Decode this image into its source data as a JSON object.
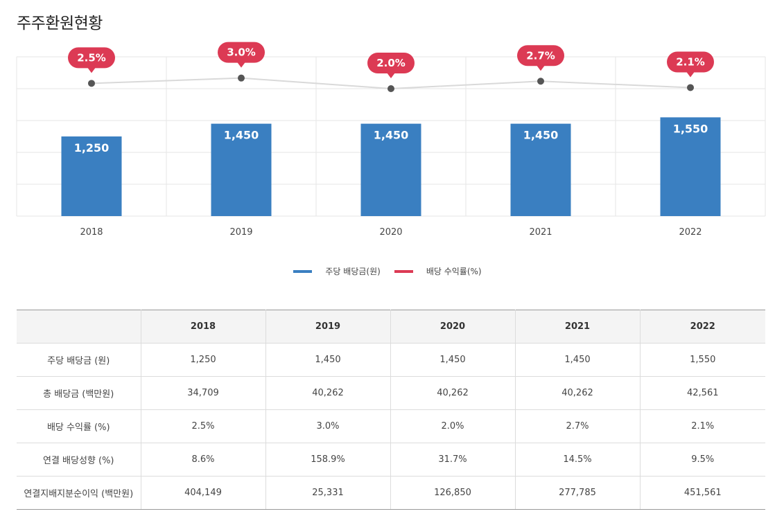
{
  "page": {
    "title": "주주환원현황"
  },
  "colors": {
    "bar": "#3a7fc1",
    "line": "#d9d9d9",
    "badge": "#dc3a54",
    "grid": "#e6e6e6",
    "point": "#555555"
  },
  "chart_data": {
    "type": "bar",
    "categories": [
      "2018",
      "2019",
      "2020",
      "2021",
      "2022"
    ],
    "series": [
      {
        "name": "주당 배당금(원)",
        "type": "bar",
        "values": [
          1250,
          1450,
          1450,
          1450,
          1550
        ],
        "labels": [
          "1,250",
          "1,450",
          "1,450",
          "1,450",
          "1,550"
        ]
      },
      {
        "name": "배당 수익률(%)",
        "type": "line",
        "values": [
          2.5,
          3.0,
          2.0,
          2.7,
          2.1
        ],
        "labels": [
          "2.5%",
          "3.0%",
          "2.0%",
          "2.7%",
          "2.1%"
        ]
      }
    ],
    "title": "",
    "xlabel": "",
    "ylabel": "",
    "ylim": [
      0,
      2500
    ],
    "y2lim": [
      -10,
      5
    ],
    "grid": true,
    "legend": "bottom-center"
  },
  "legend": {
    "items": [
      {
        "label": "주당 배당금(원)",
        "color": "#3a7fc1"
      },
      {
        "label": "배당 수익률(%)",
        "color": "#dc3a54"
      }
    ]
  },
  "table": {
    "headers": [
      "",
      "2018",
      "2019",
      "2020",
      "2021",
      "2022"
    ],
    "rows": [
      {
        "label": "주당 배당금 (원)",
        "values": [
          "1,250",
          "1,450",
          "1,450",
          "1,450",
          "1,550"
        ]
      },
      {
        "label": "총 배당금 (백만원)",
        "values": [
          "34,709",
          "40,262",
          "40,262",
          "40,262",
          "42,561"
        ]
      },
      {
        "label": "배당 수익률 (%)",
        "values": [
          "2.5%",
          "3.0%",
          "2.0%",
          "2.7%",
          "2.1%"
        ]
      },
      {
        "label": "연결 배당성향 (%)",
        "values": [
          "8.6%",
          "158.9%",
          "31.7%",
          "14.5%",
          "9.5%"
        ]
      },
      {
        "label": "연결지배지분순이익 (백만원)",
        "values": [
          "404,149",
          "25,331",
          "126,850",
          "277,785",
          "451,561"
        ]
      }
    ]
  }
}
